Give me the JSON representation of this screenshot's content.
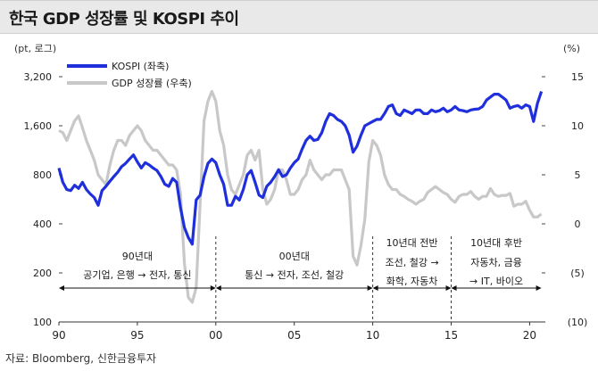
{
  "title": "한국 GDP 성장률 및 KOSPI 추이",
  "source": "자료: Bloomberg, 신한금융투자",
  "chart_data": {
    "type": "line",
    "left_axis": {
      "unit": "(pt, 로그)",
      "scale": "log",
      "range": [
        100,
        3200
      ],
      "ticks": [
        100,
        200,
        400,
        800,
        1600,
        3200
      ],
      "tick_labels": [
        "100",
        "200",
        "400",
        "800",
        "1,600",
        "3,200"
      ]
    },
    "right_axis": {
      "unit": "(%)",
      "range": [
        -10,
        15
      ],
      "ticks": [
        -10,
        -5,
        0,
        5,
        10,
        15
      ],
      "tick_labels": [
        "(10)",
        "(5)",
        "0",
        "5",
        "10",
        "15"
      ]
    },
    "x_axis": {
      "range": [
        1990,
        2021
      ],
      "ticks": [
        1990,
        1995,
        2000,
        2005,
        2010,
        2015,
        2020
      ],
      "tick_labels": [
        "90",
        "95",
        "00",
        "05",
        "10",
        "15",
        "20"
      ]
    },
    "legend_position": "top-left",
    "series": [
      {
        "name": "KOSPI (좌축)",
        "axis": "left",
        "color": "#1f2fdc",
        "x": [
          1990.0,
          1990.25,
          1990.5,
          1990.75,
          1991.0,
          1991.25,
          1991.5,
          1991.75,
          1992.0,
          1992.25,
          1992.5,
          1992.75,
          1993.0,
          1993.25,
          1993.5,
          1993.75,
          1994.0,
          1994.25,
          1994.5,
          1994.75,
          1995.0,
          1995.25,
          1995.5,
          1995.75,
          1996.0,
          1996.25,
          1996.5,
          1996.75,
          1997.0,
          1997.25,
          1997.5,
          1997.75,
          1998.0,
          1998.25,
          1998.5,
          1998.75,
          1999.0,
          1999.25,
          1999.5,
          1999.75,
          2000.0,
          2000.25,
          2000.5,
          2000.75,
          2001.0,
          2001.25,
          2001.5,
          2001.75,
          2002.0,
          2002.25,
          2002.5,
          2002.75,
          2003.0,
          2003.25,
          2003.5,
          2003.75,
          2004.0,
          2004.25,
          2004.5,
          2004.75,
          2005.0,
          2005.25,
          2005.5,
          2005.75,
          2006.0,
          2006.25,
          2006.5,
          2006.75,
          2007.0,
          2007.25,
          2007.5,
          2007.75,
          2008.0,
          2008.25,
          2008.5,
          2008.75,
          2009.0,
          2009.25,
          2009.5,
          2009.75,
          2010.0,
          2010.25,
          2010.5,
          2010.75,
          2011.0,
          2011.25,
          2011.5,
          2011.75,
          2012.0,
          2012.25,
          2012.5,
          2012.75,
          2013.0,
          2013.25,
          2013.5,
          2013.75,
          2014.0,
          2014.25,
          2014.5,
          2014.75,
          2015.0,
          2015.25,
          2015.5,
          2015.75,
          2016.0,
          2016.25,
          2016.5,
          2016.75,
          2017.0,
          2017.25,
          2017.5,
          2017.75,
          2018.0,
          2018.25,
          2018.5,
          2018.75,
          2019.0,
          2019.25,
          2019.5,
          2019.75,
          2020.0,
          2020.25,
          2020.5,
          2020.75
        ],
        "values": [
          880,
          720,
          650,
          640,
          690,
          660,
          720,
          650,
          610,
          580,
          520,
          640,
          680,
          730,
          780,
          830,
          900,
          940,
          1000,
          1060,
          960,
          880,
          950,
          920,
          880,
          850,
          780,
          700,
          680,
          760,
          720,
          500,
          380,
          330,
          300,
          560,
          600,
          780,
          940,
          1000,
          950,
          800,
          700,
          520,
          520,
          590,
          560,
          650,
          800,
          850,
          720,
          600,
          580,
          680,
          720,
          780,
          860,
          780,
          800,
          880,
          950,
          1000,
          1150,
          1300,
          1380,
          1300,
          1320,
          1450,
          1700,
          1900,
          1850,
          1750,
          1700,
          1600,
          1400,
          1100,
          1200,
          1400,
          1600,
          1650,
          1700,
          1750,
          1750,
          1900,
          2100,
          2150,
          1900,
          1850,
          2000,
          1950,
          1900,
          2000,
          2000,
          1900,
          1900,
          2000,
          1950,
          1980,
          2050,
          1950,
          2000,
          2100,
          2000,
          1980,
          1950,
          2000,
          2020,
          2030,
          2100,
          2300,
          2400,
          2500,
          2500,
          2400,
          2300,
          2050,
          2100,
          2130,
          2050,
          2150,
          2100,
          1700,
          2200,
          2600
        ]
      },
      {
        "name": "GDP 성장률 (우축)",
        "axis": "right",
        "color": "#c8c8c8",
        "x": [
          1990.0,
          1990.25,
          1990.5,
          1990.75,
          1991.0,
          1991.25,
          1991.5,
          1991.75,
          1992.0,
          1992.25,
          1992.5,
          1992.75,
          1993.0,
          1993.25,
          1993.5,
          1993.75,
          1994.0,
          1994.25,
          1994.5,
          1994.75,
          1995.0,
          1995.25,
          1995.5,
          1995.75,
          1996.0,
          1996.25,
          1996.5,
          1996.75,
          1997.0,
          1997.25,
          1997.5,
          1997.75,
          1998.0,
          1998.25,
          1998.5,
          1998.75,
          1999.0,
          1999.25,
          1999.5,
          1999.75,
          2000.0,
          2000.25,
          2000.5,
          2000.75,
          2001.0,
          2001.25,
          2001.5,
          2001.75,
          2002.0,
          2002.25,
          2002.5,
          2002.75,
          2003.0,
          2003.25,
          2003.5,
          2003.75,
          2004.0,
          2004.25,
          2004.5,
          2004.75,
          2005.0,
          2005.25,
          2005.5,
          2005.75,
          2006.0,
          2006.25,
          2006.5,
          2006.75,
          2007.0,
          2007.25,
          2007.5,
          2007.75,
          2008.0,
          2008.25,
          2008.5,
          2008.75,
          2009.0,
          2009.25,
          2009.5,
          2009.75,
          2010.0,
          2010.25,
          2010.5,
          2010.75,
          2011.0,
          2011.25,
          2011.5,
          2011.75,
          2012.0,
          2012.25,
          2012.5,
          2012.75,
          2013.0,
          2013.25,
          2013.5,
          2013.75,
          2014.0,
          2014.25,
          2014.5,
          2014.75,
          2015.0,
          2015.25,
          2015.5,
          2015.75,
          2016.0,
          2016.25,
          2016.5,
          2016.75,
          2017.0,
          2017.25,
          2017.5,
          2017.75,
          2018.0,
          2018.25,
          2018.5,
          2018.75,
          2019.0,
          2019.25,
          2019.5,
          2019.75,
          2020.0,
          2020.25,
          2020.5,
          2020.75
        ],
        "values": [
          9.5,
          9.3,
          8.5,
          9.5,
          10.5,
          11.0,
          9.8,
          8.5,
          7.5,
          6.5,
          5.0,
          4.5,
          4.0,
          6.0,
          7.5,
          8.5,
          8.5,
          8.0,
          9.0,
          9.5,
          10.0,
          9.5,
          8.5,
          8.0,
          7.5,
          7.5,
          7.0,
          6.5,
          6.0,
          6.0,
          5.5,
          3.0,
          -4.0,
          -7.5,
          -8.0,
          -6.5,
          2.0,
          10.5,
          12.5,
          13.5,
          12.5,
          9.5,
          8.0,
          5.0,
          3.5,
          3.0,
          4.0,
          5.0,
          7.0,
          7.5,
          6.5,
          7.5,
          3.5,
          2.0,
          2.5,
          3.5,
          5.5,
          5.5,
          4.5,
          3.0,
          3.0,
          3.5,
          4.5,
          5.0,
          6.5,
          5.5,
          5.0,
          4.5,
          5.0,
          5.0,
          5.5,
          5.5,
          5.5,
          4.5,
          3.5,
          -3.3,
          -4.2,
          -2.2,
          0.5,
          6.3,
          8.5,
          8.0,
          7.0,
          5.0,
          4.0,
          3.5,
          3.5,
          3.0,
          2.8,
          2.5,
          2.3,
          2.0,
          2.3,
          2.5,
          3.2,
          3.5,
          3.8,
          3.5,
          3.2,
          3.0,
          2.5,
          2.2,
          2.8,
          3.0,
          3.0,
          3.3,
          2.8,
          2.5,
          2.8,
          2.8,
          3.6,
          3.0,
          2.8,
          2.9,
          2.9,
          3.1,
          1.8,
          2.0,
          2.0,
          2.3,
          1.4,
          0.7,
          0.7,
          1.0
        ]
      }
    ],
    "annotations": [
      {
        "lines": [
          "90년대",
          "공기업, 은행 → 전자, 통신"
        ],
        "from": 1990,
        "to": 2000
      },
      {
        "lines": [
          "00년대",
          "통신 → 전자, 조선, 철강"
        ],
        "from": 2000,
        "to": 2010
      },
      {
        "lines": [
          "10년대 전반",
          "조선, 철강 →",
          "화학, 자동차"
        ],
        "from": 2010,
        "to": 2015
      },
      {
        "lines": [
          "10년대 후반",
          "자동차, 금융",
          "→ IT, 바이오"
        ],
        "from": 2015,
        "to": 2020.75
      }
    ]
  }
}
